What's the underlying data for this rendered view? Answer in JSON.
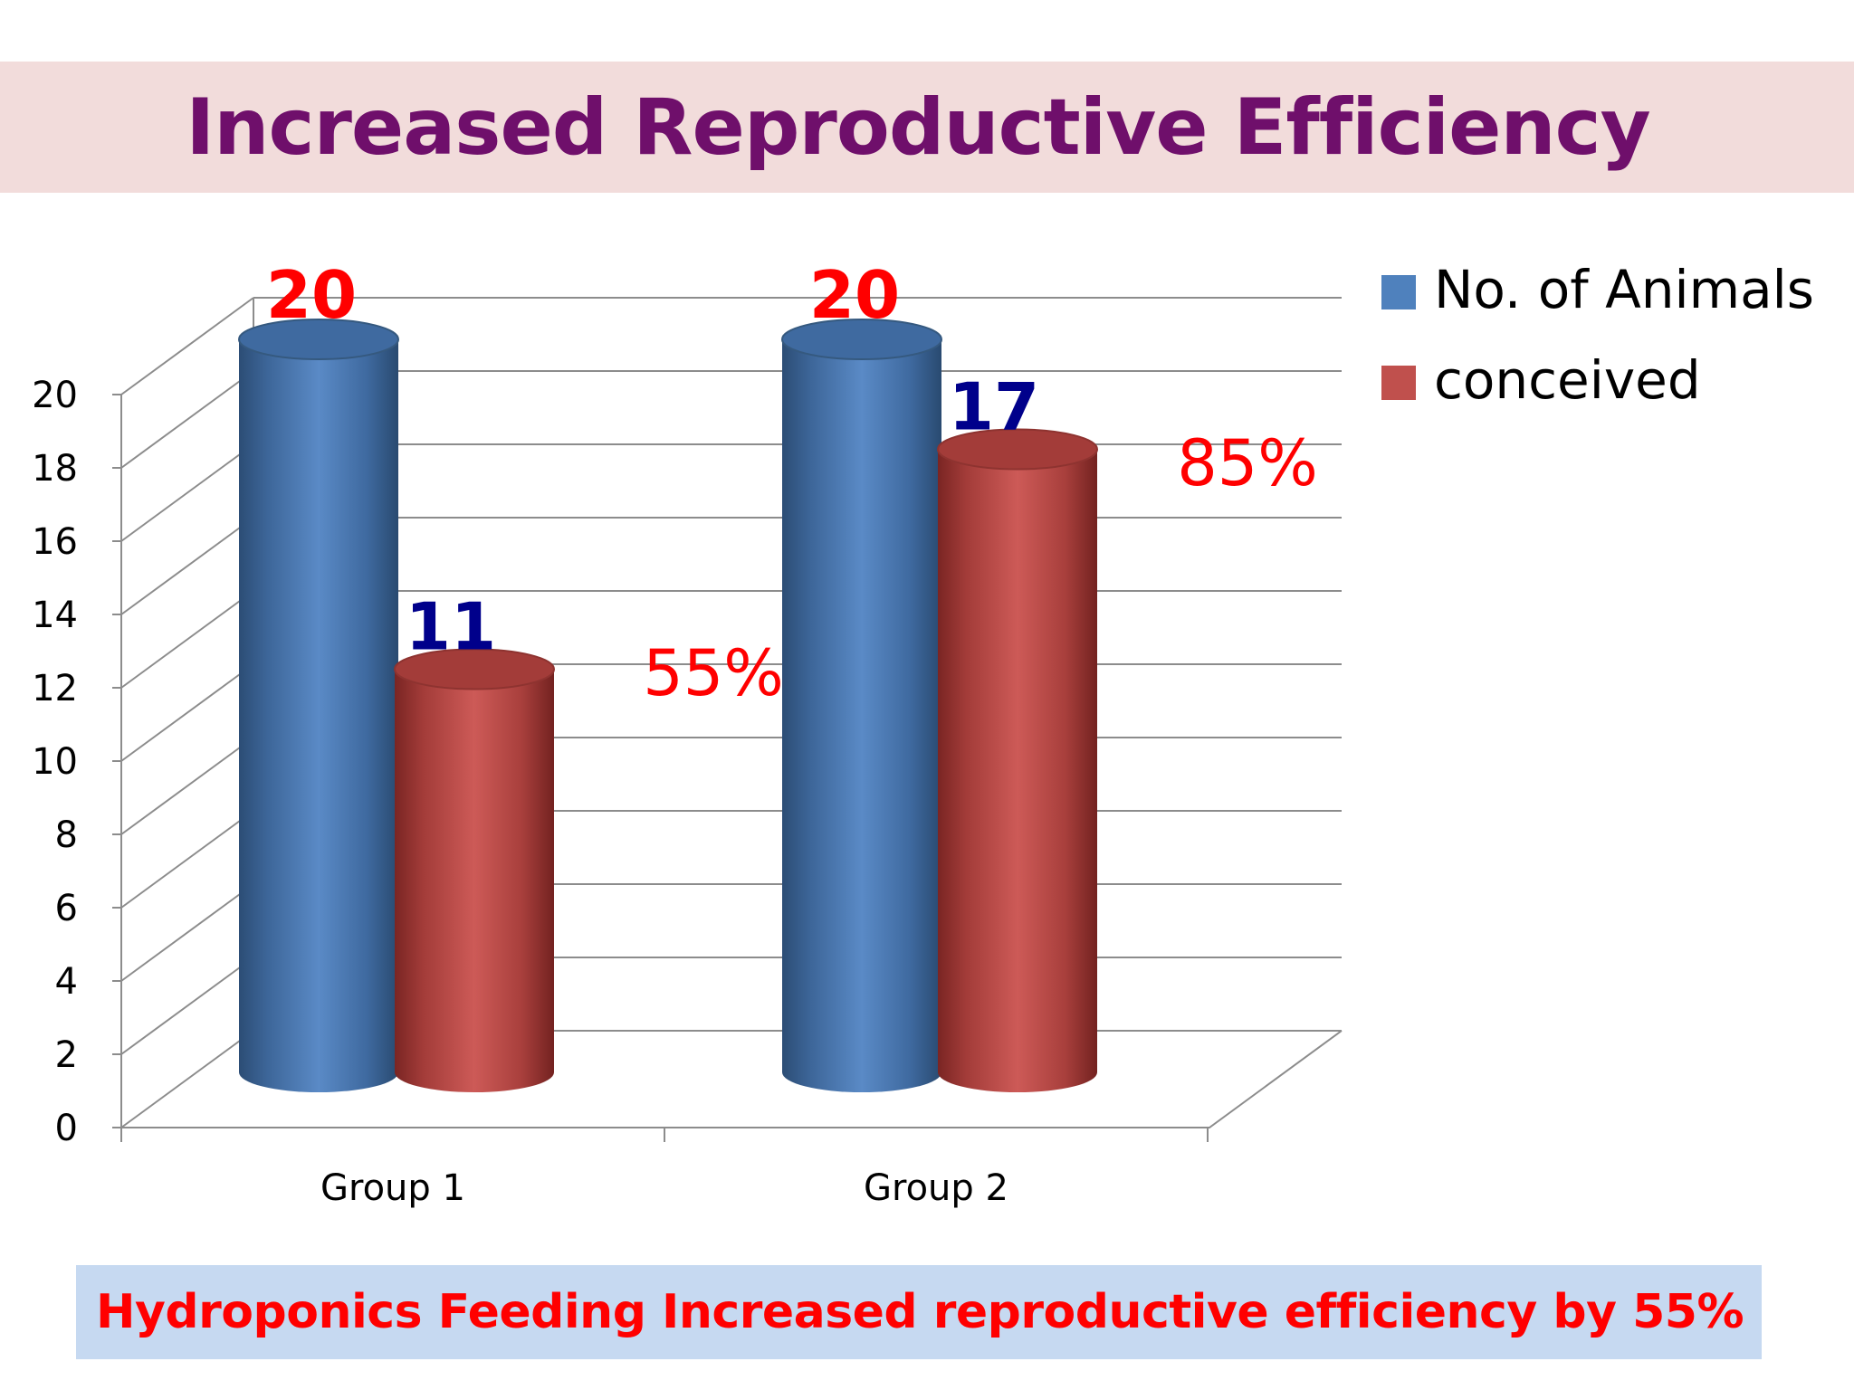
{
  "slide": {
    "title": "Increased Reproductive Efficiency",
    "footer": "Hydroponics Feeding Increased reproductive efficiency by 55%"
  },
  "chart_data": {
    "type": "bar",
    "style": "3d-cylinder",
    "categories": [
      "Group 1",
      "Group 2"
    ],
    "series": [
      {
        "name": "No. of Animals",
        "values": [
          20,
          20
        ],
        "color": "#4f81bd",
        "label_color": "#ff0000"
      },
      {
        "name": "conceived",
        "values": [
          11,
          17
        ],
        "color": "#c0504d",
        "label_color": "#00008b"
      }
    ],
    "annotations": [
      {
        "category": "Group 1",
        "text": "55%",
        "color": "#ff0000"
      },
      {
        "category": "Group 2",
        "text": "85%",
        "color": "#ff0000"
      }
    ],
    "yticks": [
      0,
      2,
      4,
      6,
      8,
      10,
      12,
      14,
      16,
      18,
      20
    ],
    "ylim": [
      0,
      20
    ],
    "grid": true,
    "legend_position": "top-right"
  }
}
